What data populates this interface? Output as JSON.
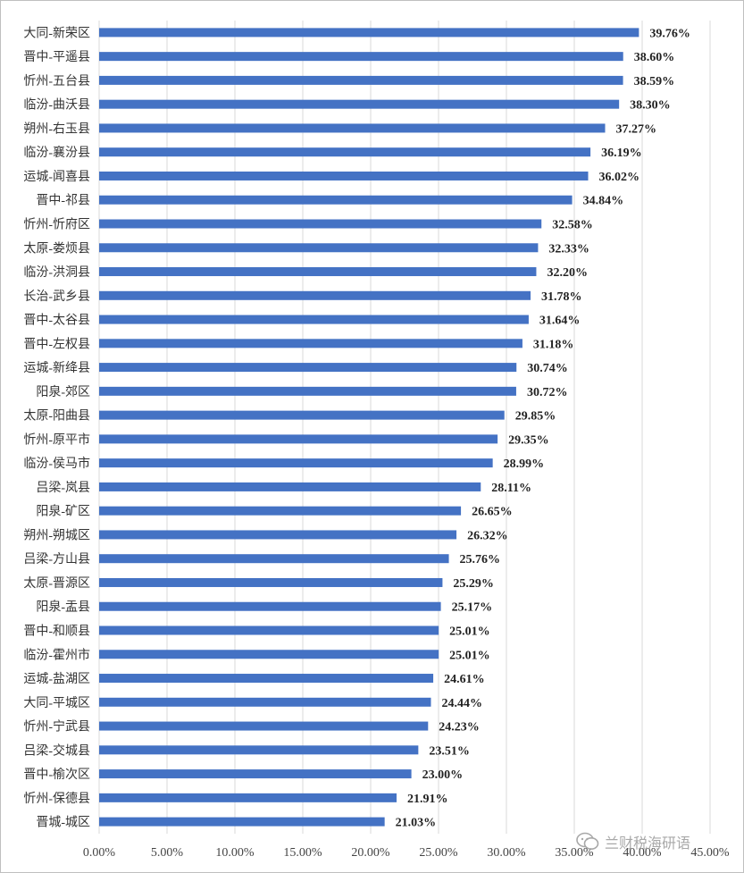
{
  "chart_data": {
    "type": "bar",
    "orientation": "horizontal",
    "categories": [
      "大同-新荣区",
      "晋中-平遥县",
      "忻州-五台县",
      "临汾-曲沃县",
      "朔州-右玉县",
      "临汾-襄汾县",
      "运城-闻喜县",
      "晋中-祁县",
      "忻州-忻府区",
      "太原-娄烦县",
      "临汾-洪洞县",
      "长治-武乡县",
      "晋中-太谷县",
      "晋中-左权县",
      "运城-新绛县",
      "阳泉-郊区",
      "太原-阳曲县",
      "忻州-原平市",
      "临汾-侯马市",
      "吕梁-岚县",
      "阳泉-矿区",
      "朔州-朔城区",
      "吕梁-方山县",
      "太原-晋源区",
      "阳泉-盂县",
      "晋中-和顺县",
      "临汾-霍州市",
      "运城-盐湖区",
      "大同-平城区",
      "忻州-宁武县",
      "吕梁-交城县",
      "晋中-榆次区",
      "忻州-保德县",
      "晋城-城区"
    ],
    "values": [
      39.76,
      38.6,
      38.59,
      38.3,
      37.27,
      36.19,
      36.02,
      34.84,
      32.58,
      32.33,
      32.2,
      31.78,
      31.64,
      31.18,
      30.74,
      30.72,
      29.85,
      29.35,
      28.99,
      28.11,
      26.65,
      26.32,
      25.76,
      25.29,
      25.17,
      25.01,
      25.01,
      24.61,
      24.44,
      24.23,
      23.51,
      23.0,
      21.91,
      21.03
    ],
    "data_labels": [
      "39.76%",
      "38.60%",
      "38.59%",
      "38.30%",
      "37.27%",
      "36.19%",
      "36.02%",
      "34.84%",
      "32.58%",
      "32.33%",
      "32.20%",
      "31.78%",
      "31.64%",
      "31.18%",
      "30.74%",
      "30.72%",
      "29.85%",
      "29.35%",
      "28.99%",
      "28.11%",
      "26.65%",
      "26.32%",
      "25.76%",
      "25.29%",
      "25.17%",
      "25.01%",
      "25.01%",
      "24.61%",
      "24.44%",
      "24.23%",
      "23.51%",
      "23.00%",
      "21.91%",
      "21.03%"
    ],
    "xlim": [
      0,
      45
    ],
    "x_ticks": [
      "0.00%",
      "5.00%",
      "10.00%",
      "15.00%",
      "20.00%",
      "25.00%",
      "30.00%",
      "35.00%",
      "40.00%",
      "45.00%"
    ],
    "title": "",
    "xlabel": "",
    "ylabel": "",
    "grid": "vertical",
    "legend": "none",
    "bar_color": "#4472C4",
    "grid_color": "#d9d9d9"
  },
  "watermark": {
    "text": "兰财税海研语",
    "icon": "wechat-icon"
  }
}
